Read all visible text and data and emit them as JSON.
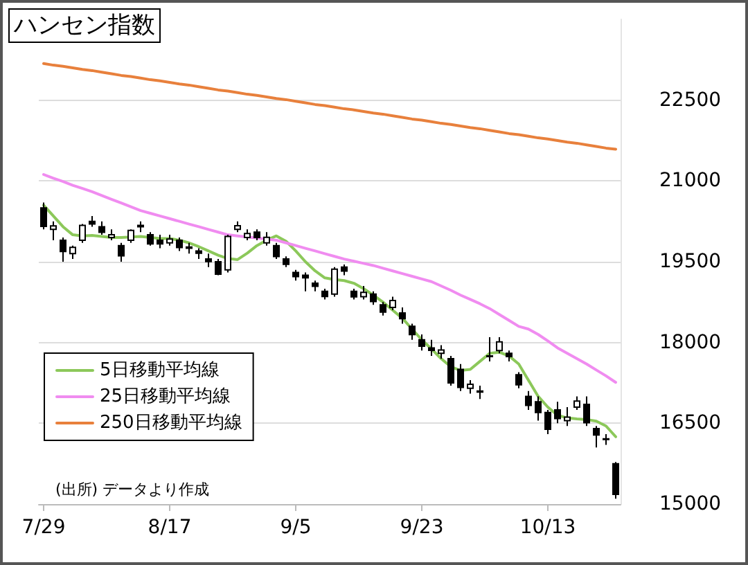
{
  "chart_data": {
    "type": "candlestick",
    "title": "ハンセン指数",
    "annotations": [
      "(出所) データより作成"
    ],
    "categories": [
      "7/29",
      null,
      null,
      null,
      null,
      null,
      null,
      null,
      null,
      null,
      null,
      null,
      null,
      "8/17",
      null,
      null,
      null,
      null,
      null,
      null,
      null,
      null,
      null,
      null,
      null,
      null,
      "9/5",
      null,
      null,
      null,
      null,
      null,
      null,
      null,
      null,
      null,
      null,
      null,
      null,
      "9/23",
      null,
      null,
      null,
      null,
      null,
      null,
      null,
      null,
      null,
      null,
      null,
      null,
      "10/13",
      null,
      null,
      null,
      null,
      null,
      null,
      null
    ],
    "ylim": [
      15000,
      24000
    ],
    "yticks": [
      15000,
      16500,
      18000,
      19500,
      21000,
      22500
    ],
    "grid": "y",
    "legend": "bottom left",
    "series": [
      {
        "type": "line",
        "name": "5日移動平均線",
        "color": "#8cc85a",
        "values": [
          20550,
          20350,
          20150,
          20000,
          19980,
          19990,
          19970,
          19950,
          19950,
          19960,
          19970,
          19950,
          19930,
          19930,
          19900,
          19850,
          19780,
          19700,
          19620,
          19560,
          19540,
          19660,
          19800,
          19900,
          19980,
          19880,
          19700,
          19500,
          19330,
          19200,
          19170,
          19150,
          19100,
          19000,
          18880,
          18750,
          18600,
          18450,
          18250,
          18050,
          17880,
          17700,
          17550,
          17480,
          17500,
          17650,
          17800,
          17820,
          17750,
          17600,
          17300,
          17000,
          16800,
          16650,
          16600,
          16580,
          16570,
          16540,
          16450,
          16250
        ]
      },
      {
        "type": "line",
        "name": "25日移動平均線",
        "color": "#f08cf0",
        "values": [
          21120,
          21050,
          20990,
          20920,
          20860,
          20800,
          20730,
          20660,
          20590,
          20520,
          20450,
          20400,
          20350,
          20300,
          20250,
          20200,
          20150,
          20100,
          20050,
          20000,
          19980,
          19960,
          19940,
          19920,
          19900,
          19850,
          19800,
          19750,
          19700,
          19650,
          19600,
          19550,
          19510,
          19470,
          19430,
          19380,
          19330,
          19280,
          19230,
          19180,
          19130,
          19050,
          18970,
          18880,
          18800,
          18720,
          18630,
          18520,
          18410,
          18300,
          18250,
          18150,
          18030,
          17900,
          17800,
          17700,
          17600,
          17490,
          17380,
          17260
        ]
      },
      {
        "type": "line",
        "name": "250日移動平均線",
        "color": "#e8803c",
        "values": [
          23180,
          23150,
          23130,
          23100,
          23070,
          23050,
          23020,
          22990,
          22960,
          22940,
          22910,
          22880,
          22860,
          22830,
          22800,
          22780,
          22750,
          22720,
          22690,
          22670,
          22640,
          22610,
          22590,
          22560,
          22530,
          22510,
          22480,
          22450,
          22420,
          22400,
          22370,
          22340,
          22320,
          22290,
          22260,
          22240,
          22210,
          22180,
          22150,
          22130,
          22100,
          22070,
          22050,
          22020,
          21990,
          21970,
          21940,
          21910,
          21880,
          21860,
          21830,
          21800,
          21780,
          21750,
          21720,
          21700,
          21670,
          21640,
          21610,
          21590
        ]
      },
      {
        "color": "#000000",
        "ohlc": [
          [
            20500,
            20600,
            20100,
            20156
          ],
          [
            20100,
            20250,
            19900,
            20165
          ],
          [
            19900,
            19950,
            19500,
            19689
          ],
          [
            19650,
            19800,
            19550,
            19767
          ],
          [
            19900,
            20200,
            19850,
            20174
          ],
          [
            20250,
            20350,
            20150,
            20201
          ],
          [
            20150,
            20250,
            20000,
            20045
          ],
          [
            19950,
            20100,
            19900,
            20003
          ],
          [
            19800,
            19850,
            19500,
            19610
          ],
          [
            19900,
            20100,
            19850,
            20082
          ],
          [
            20150,
            20250,
            20050,
            20175
          ],
          [
            20000,
            20050,
            19800,
            19830
          ],
          [
            19900,
            20000,
            19750,
            19830
          ],
          [
            19850,
            20000,
            19800,
            19922
          ],
          [
            19900,
            19950,
            19700,
            19763
          ],
          [
            19750,
            19850,
            19650,
            19773
          ],
          [
            19700,
            19750,
            19550,
            19657
          ],
          [
            19550,
            19650,
            19400,
            19503
          ],
          [
            19500,
            19550,
            19250,
            19268
          ],
          [
            19350,
            20000,
            19300,
            19968
          ],
          [
            20100,
            20250,
            20050,
            20170
          ],
          [
            19950,
            20100,
            19900,
            20023
          ],
          [
            20050,
            20100,
            19900,
            19950
          ],
          [
            19850,
            20050,
            19800,
            19954
          ],
          [
            19800,
            19850,
            19550,
            19597
          ],
          [
            19550,
            19600,
            19400,
            19452
          ],
          [
            19300,
            19350,
            19150,
            19225
          ],
          [
            19250,
            19300,
            18950,
            19202
          ],
          [
            19100,
            19150,
            18950,
            19044
          ],
          [
            18950,
            19000,
            18800,
            18854
          ],
          [
            18900,
            19400,
            18850,
            19362
          ],
          [
            19400,
            19450,
            19250,
            19326
          ],
          [
            18950,
            19000,
            18800,
            18847
          ],
          [
            18850,
            19050,
            18800,
            18930
          ],
          [
            18900,
            18950,
            18700,
            18761
          ],
          [
            18700,
            18750,
            18500,
            18566
          ],
          [
            18650,
            18850,
            18600,
            18781
          ],
          [
            18550,
            18650,
            18350,
            18444
          ],
          [
            18300,
            18350,
            18050,
            18147
          ],
          [
            18050,
            18150,
            17850,
            17933
          ],
          [
            17900,
            18050,
            17750,
            17855
          ],
          [
            17800,
            17950,
            17700,
            17860
          ],
          [
            17700,
            17750,
            17200,
            17250
          ],
          [
            17500,
            17600,
            17100,
            17165
          ],
          [
            17150,
            17300,
            17050,
            17223
          ],
          [
            17100,
            17200,
            16950,
            17079
          ],
          [
            17750,
            18100,
            17650,
            17740
          ],
          [
            17850,
            18100,
            17800,
            18012
          ],
          [
            17800,
            17850,
            17650,
            17740
          ],
          [
            17400,
            17450,
            17150,
            17216
          ],
          [
            17000,
            17100,
            16750,
            16832
          ],
          [
            16900,
            17000,
            16550,
            16701
          ],
          [
            16700,
            16750,
            16300,
            16389
          ],
          [
            16750,
            16900,
            16500,
            16587
          ],
          [
            16550,
            16800,
            16450,
            16612
          ],
          [
            16800,
            17000,
            16750,
            16914
          ],
          [
            16850,
            17000,
            16450,
            16511
          ],
          [
            16400,
            16450,
            16050,
            16281
          ],
          [
            16200,
            16300,
            16100,
            16211
          ],
          [
            15750,
            15780,
            15100,
            15180
          ]
        ]
      }
    ]
  }
}
